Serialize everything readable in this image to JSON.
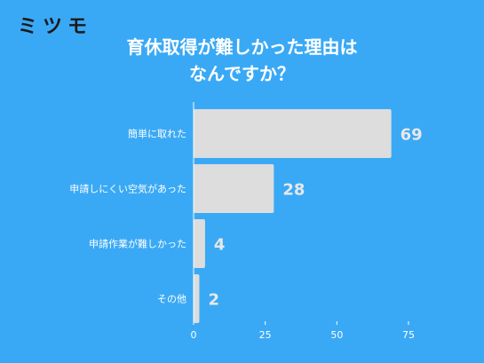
{
  "logo": "ミツモ",
  "chart_data": {
    "type": "bar",
    "orientation": "horizontal",
    "title_lines": [
      "育休取得が難しかった理由は",
      "なんですか？"
    ],
    "categories": [
      "簡単に取れた",
      "申請しにくい空気があった",
      "申請作業が難しかった",
      "その他"
    ],
    "values": [
      69,
      28,
      4,
      2
    ],
    "xlim": [
      0,
      75
    ],
    "xticks": [
      0,
      25,
      50,
      75
    ],
    "grid": false,
    "colors": {
      "bar": "#dddddd",
      "axis": "#ffffff",
      "background": "#3aa9f5"
    }
  }
}
